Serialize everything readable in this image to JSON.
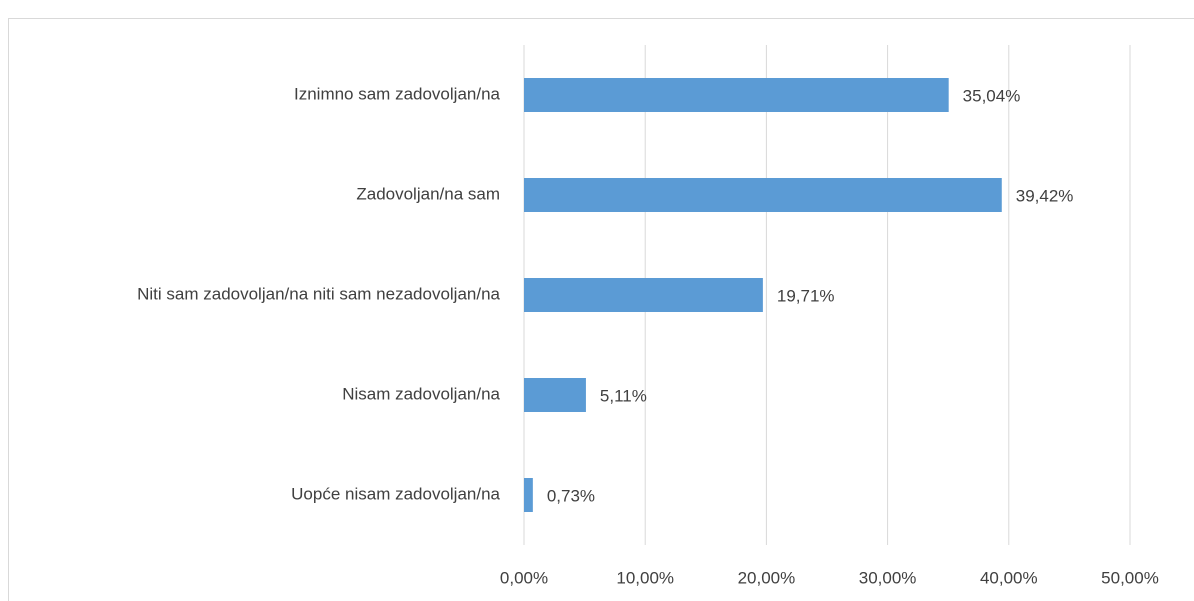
{
  "chart_data": {
    "type": "bar",
    "orientation": "horizontal",
    "categories": [
      "Iznimno sam zadovoljan/na",
      "Zadovoljan/na sam",
      "Niti sam zadovoljan/na niti sam nezadovoljan/na",
      "Nisam zadovoljan/na",
      "Uopće nisam zadovoljan/na"
    ],
    "values": [
      35.04,
      39.42,
      19.71,
      5.11,
      0.73
    ],
    "value_labels": [
      "35,04%",
      "39,42%",
      "19,71%",
      "5,11%",
      "0,73%"
    ],
    "color": "#5b9bd5",
    "xlim": [
      0,
      50
    ],
    "xticks": [
      {
        "value": 0,
        "label": "0,00%"
      },
      {
        "value": 10,
        "label": "10,00%"
      },
      {
        "value": 20,
        "label": "20,00%"
      },
      {
        "value": 30,
        "label": "30,00%"
      },
      {
        "value": 40,
        "label": "40,00%"
      },
      {
        "value": 50,
        "label": "50,00%"
      }
    ],
    "grid": true
  }
}
